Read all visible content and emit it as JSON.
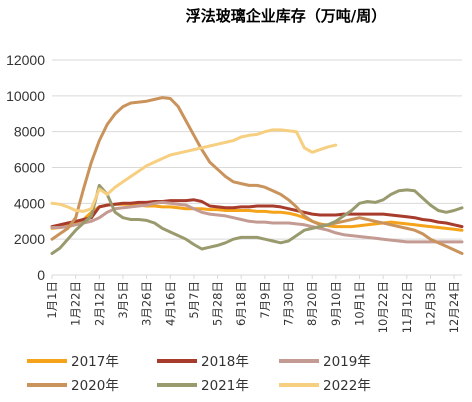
{
  "chart_data": {
    "type": "line",
    "title": "浮法玻璃企业库存（万吨/周）",
    "xlabel": "",
    "ylabel": "",
    "ylim": [
      0,
      12000
    ],
    "yticks": [
      "0",
      "2000",
      "4000",
      "6000",
      "8000",
      "10000",
      "12000"
    ],
    "grid": true,
    "legend_position": "bottom",
    "x_tick_labels": [
      "1月1日",
      "1月22日",
      "2月12日",
      "3月5日",
      "3月26日",
      "4月16日",
      "5月7日",
      "5月28日",
      "6月18日",
      "7月9日",
      "7月30日",
      "8月20日",
      "9月10日",
      "10月1日",
      "10月22日",
      "11月12日",
      "12月3日",
      "12月24日"
    ],
    "x": [
      "1月1日",
      "1月8日",
      "1月15日",
      "1月22日",
      "1月29日",
      "2月5日",
      "2月12日",
      "2月19日",
      "2月26日",
      "3月5日",
      "3月12日",
      "3月19日",
      "3月26日",
      "4月2日",
      "4月9日",
      "4月16日",
      "4月23日",
      "4月30日",
      "5月7日",
      "5月14日",
      "5月21日",
      "5月28日",
      "6月4日",
      "6月11日",
      "6月18日",
      "6月25日",
      "7月2日",
      "7月9日",
      "7月16日",
      "7月23日",
      "7月30日",
      "8月6日",
      "8月13日",
      "8月20日",
      "8月27日",
      "9月3日",
      "9月10日",
      "9月17日",
      "9月24日",
      "10月1日",
      "10月8日",
      "10月15日",
      "10月22日",
      "10月29日",
      "11月5日",
      "11月12日",
      "11月19日",
      "11月26日",
      "12月3日",
      "12月10日",
      "12月17日",
      "12月24日",
      "12月31日"
    ],
    "series": [
      {
        "name": "2017年",
        "color": "#f5a31a",
        "values": [
          2600,
          2650,
          2750,
          2900,
          3100,
          3500,
          3800,
          3900,
          3950,
          3950,
          3950,
          3900,
          3850,
          3850,
          3800,
          3800,
          3750,
          3700,
          3700,
          3700,
          3650,
          3650,
          3600,
          3600,
          3600,
          3600,
          3550,
          3550,
          3500,
          3500,
          3450,
          3350,
          3200,
          3000,
          2850,
          2750,
          2700,
          2700,
          2700,
          2750,
          2800,
          2850,
          2900,
          2950,
          2900,
          2850,
          2800,
          2750,
          2700,
          2650,
          2600,
          2550,
          2500
        ]
      },
      {
        "name": "2018年",
        "color": "#a83c2c",
        "values": [
          2700,
          2800,
          2900,
          3000,
          3100,
          3200,
          3800,
          3900,
          3950,
          4000,
          4000,
          4050,
          4050,
          4100,
          4100,
          4150,
          4150,
          4150,
          4200,
          4100,
          3850,
          3800,
          3750,
          3750,
          3800,
          3800,
          3850,
          3850,
          3850,
          3800,
          3700,
          3600,
          3500,
          3400,
          3350,
          3350,
          3350,
          3400,
          3400,
          3400,
          3400,
          3400,
          3400,
          3350,
          3300,
          3250,
          3200,
          3100,
          3050,
          2950,
          2900,
          2800,
          2700
        ]
      },
      {
        "name": "2019年",
        "color": "#c49b93",
        "values": [
          2650,
          2650,
          2700,
          2800,
          2900,
          3000,
          3200,
          3500,
          3700,
          3750,
          3800,
          3850,
          3900,
          4000,
          4050,
          4000,
          3950,
          3900,
          3700,
          3500,
          3400,
          3350,
          3300,
          3200,
          3100,
          3000,
          2950,
          2950,
          2900,
          2900,
          2900,
          2850,
          2800,
          2700,
          2600,
          2500,
          2350,
          2250,
          2200,
          2150,
          2100,
          2050,
          2000,
          1950,
          1900,
          1850,
          1850,
          1850,
          1850,
          1850,
          1850,
          1850,
          1850
        ]
      },
      {
        "name": "2020年",
        "color": "#c9935b",
        "values": [
          2000,
          2300,
          2600,
          3200,
          4800,
          6300,
          7500,
          8400,
          9000,
          9400,
          9600,
          9650,
          9700,
          9800,
          9900,
          9850,
          9400,
          8600,
          7800,
          7000,
          6300,
          5900,
          5500,
          5200,
          5100,
          5000,
          5000,
          4900,
          4700,
          4500,
          4200,
          3800,
          3300,
          3000,
          2800,
          2800,
          2900,
          3000,
          3100,
          3200,
          3100,
          3000,
          2900,
          2800,
          2700,
          2600,
          2500,
          2300,
          2000,
          1800,
          1600,
          1400,
          1200
        ]
      },
      {
        "name": "2021年",
        "color": "#999b6e",
        "values": [
          1200,
          1500,
          2000,
          2500,
          2900,
          3300,
          5000,
          4500,
          3500,
          3200,
          3100,
          3100,
          3050,
          2900,
          2600,
          2400,
          2200,
          2000,
          1700,
          1450,
          1550,
          1650,
          1800,
          2000,
          2100,
          2100,
          2100,
          2000,
          1900,
          1800,
          1900,
          2200,
          2500,
          2600,
          2700,
          2800,
          3000,
          3300,
          3600,
          4000,
          4100,
          4050,
          4200,
          4500,
          4700,
          4750,
          4700,
          4300,
          3900,
          3600,
          3500,
          3600,
          3750
        ]
      },
      {
        "name": "2022年",
        "color": "#f7cf80",
        "values": [
          4000,
          3950,
          3800,
          3600,
          3550,
          3700,
          4800,
          4500,
          4900,
          5200,
          5500,
          5800,
          6100,
          6300,
          6500,
          6700,
          6800,
          6900,
          7000,
          7100,
          7200,
          7300,
          7400,
          7500,
          7700,
          7800,
          7850,
          8000,
          8100,
          8100,
          8050,
          8000,
          7100,
          6850,
          7000,
          7150,
          7250,
          null,
          null,
          null,
          null,
          null,
          null,
          null,
          null,
          null,
          null,
          null,
          null,
          null,
          null,
          null,
          null
        ]
      }
    ]
  }
}
